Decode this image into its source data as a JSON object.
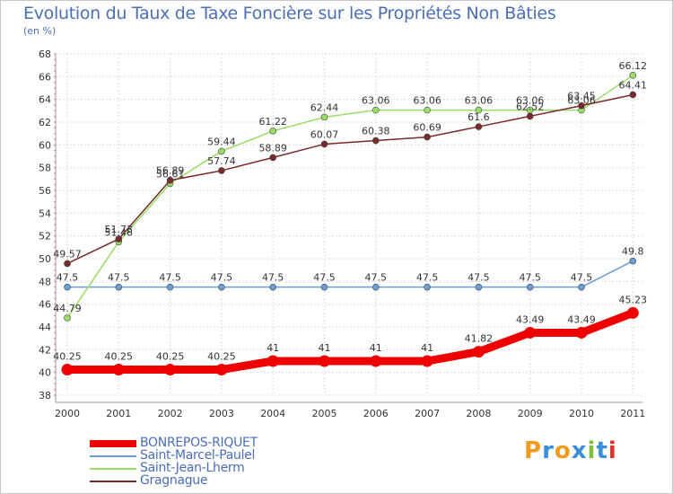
{
  "title": "Evolution du Taux de Taxe Foncière sur les Propriétés Non Bâties",
  "unit": "(en %)",
  "logo": {
    "letters": [
      "P",
      "r",
      "o",
      "x",
      "i",
      "t",
      "i"
    ],
    "colors": [
      "#f29a1d",
      "#3a8fd6",
      "#f29a1d",
      "#3a8fd6",
      "#7cbf3a",
      "#3a8fd6",
      "#e0322c"
    ]
  },
  "chart_data": {
    "type": "line",
    "x": [
      "2000",
      "2001",
      "2002",
      "2003",
      "2004",
      "2005",
      "2006",
      "2007",
      "2008",
      "2009",
      "2010",
      "2011"
    ],
    "ylim": [
      38,
      68
    ],
    "yticks": [
      38,
      40,
      42,
      44,
      46,
      48,
      50,
      52,
      54,
      56,
      58,
      60,
      62,
      64,
      66,
      68
    ],
    "grid": true,
    "legend_position": "bottom-left",
    "series": [
      {
        "name": "BONREPOS-RIQUET",
        "color": "#ee0000",
        "width": "thick",
        "values": [
          40.25,
          40.25,
          40.25,
          40.25,
          41,
          41,
          41,
          41,
          41.82,
          43.49,
          43.49,
          45.23
        ],
        "labels": [
          "40.25",
          "40.25",
          "40.25",
          "40.25",
          "41",
          "41",
          "41",
          "41",
          "41.82",
          "43.49",
          "43.49",
          "45.23"
        ]
      },
      {
        "name": "Saint-Marcel-Paulel",
        "color": "#6a9ed4",
        "width": "thin",
        "values": [
          47.5,
          47.5,
          47.5,
          47.5,
          47.5,
          47.5,
          47.5,
          47.5,
          47.5,
          47.5,
          47.5,
          49.8
        ],
        "labels": [
          "47.5",
          "47.5",
          "47.5",
          "47.5",
          "47.5",
          "47.5",
          "47.5",
          "47.5",
          "47.5",
          "47.5",
          "47.5",
          "49.8"
        ]
      },
      {
        "name": "Saint-Jean-Lherm",
        "color": "#99dd66",
        "width": "thin",
        "values": [
          44.79,
          51.48,
          56.61,
          59.44,
          61.22,
          62.44,
          63.06,
          63.06,
          63.06,
          63.06,
          63.06,
          66.12
        ],
        "labels": [
          "44.79",
          "51.48",
          "56.61",
          "59.44",
          "61.22",
          "62.44",
          "63.06",
          "63.06",
          "63.06",
          "63.06",
          "63.06",
          "66.12"
        ]
      },
      {
        "name": "Gragnague",
        "color": "#7a2a2a",
        "width": "thin",
        "values": [
          49.57,
          51.73,
          56.89,
          57.74,
          58.89,
          60.07,
          60.38,
          60.69,
          61.6,
          62.52,
          63.45,
          64.41
        ],
        "labels": [
          "49.57",
          "51.73",
          "56.89",
          "57.74",
          "58.89",
          "60.07",
          "60.38",
          "60.69",
          "61.6",
          "62.52",
          "63.45",
          "64.41"
        ]
      }
    ]
  }
}
